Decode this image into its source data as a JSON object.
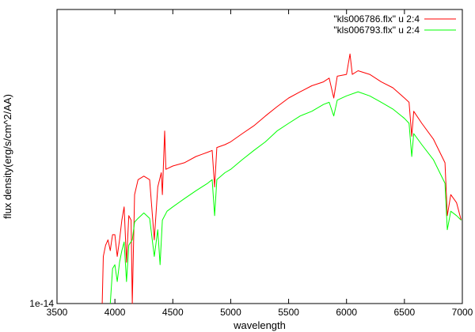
{
  "chart_data": {
    "type": "line",
    "title": "",
    "xlabel": "wavelength",
    "ylabel": "flux density(erg/s/cm^2/AA)",
    "y_scale": "log",
    "xlim": [
      3500,
      7000
    ],
    "ylim": [
      1e-14,
      6.5e-14
    ],
    "x_ticks": [
      3500,
      4000,
      4500,
      5000,
      5500,
      6000,
      6500,
      7000
    ],
    "x_tick_labels": [
      "3500",
      "4000",
      "4500",
      "5000",
      "5500",
      "6000",
      "6500",
      "7000"
    ],
    "y_ticks": [
      1e-14
    ],
    "y_tick_labels": [
      "1e-14"
    ],
    "grid": false,
    "legend_position": "top-right",
    "series": [
      {
        "name": "\"kls006786.flx\" u 2:4",
        "color": "#ff0000",
        "points": [
          [
            3890,
            1e-14
          ],
          [
            3900,
            1.35e-14
          ],
          [
            3920,
            1.45e-14
          ],
          [
            3940,
            1.5e-14
          ],
          [
            3960,
            1.4e-14
          ],
          [
            3970,
            1.48e-14
          ],
          [
            3980,
            1.55e-14
          ],
          [
            4000,
            1.55e-14
          ],
          [
            4020,
            1.35e-14
          ],
          [
            4040,
            1.5e-14
          ],
          [
            4060,
            1.7e-14
          ],
          [
            4080,
            1.85e-14
          ],
          [
            4100,
            1.3e-14
          ],
          [
            4120,
            1.75e-14
          ],
          [
            4140,
            1.7e-14
          ],
          [
            4150,
            1e-14
          ],
          [
            4170,
            2e-14
          ],
          [
            4200,
            2.2e-14
          ],
          [
            4250,
            2.25e-14
          ],
          [
            4300,
            2.2e-14
          ],
          [
            4340,
            1.5e-14
          ],
          [
            4370,
            2.1e-14
          ],
          [
            4400,
            2.3e-14
          ],
          [
            4410,
            2e-14
          ],
          [
            4430,
            3e-14
          ],
          [
            4440,
            2.35e-14
          ],
          [
            4500,
            2.4e-14
          ],
          [
            4600,
            2.45e-14
          ],
          [
            4700,
            2.55e-14
          ],
          [
            4800,
            2.62e-14
          ],
          [
            4840,
            2.65e-14
          ],
          [
            4861,
            2.1e-14
          ],
          [
            4880,
            2.7e-14
          ],
          [
            4950,
            2.75e-14
          ],
          [
            5000,
            2.8e-14
          ],
          [
            5100,
            2.95e-14
          ],
          [
            5200,
            3.1e-14
          ],
          [
            5300,
            3.3e-14
          ],
          [
            5400,
            3.5e-14
          ],
          [
            5500,
            3.7e-14
          ],
          [
            5600,
            3.85e-14
          ],
          [
            5700,
            4e-14
          ],
          [
            5800,
            4.1e-14
          ],
          [
            5850,
            4.2e-14
          ],
          [
            5890,
            3.7e-14
          ],
          [
            5920,
            4.25e-14
          ],
          [
            6000,
            4.3e-14
          ],
          [
            6030,
            4.9e-14
          ],
          [
            6050,
            4.3e-14
          ],
          [
            6100,
            4.4e-14
          ],
          [
            6200,
            4.3e-14
          ],
          [
            6300,
            4.1e-14
          ],
          [
            6400,
            3.95e-14
          ],
          [
            6500,
            3.7e-14
          ],
          [
            6540,
            3.6e-14
          ],
          [
            6563,
            2.9e-14
          ],
          [
            6580,
            3.4e-14
          ],
          [
            6650,
            3.15e-14
          ],
          [
            6750,
            2.85e-14
          ],
          [
            6850,
            2.45e-14
          ],
          [
            6870,
            1.75e-14
          ],
          [
            6900,
            2e-14
          ],
          [
            6950,
            1.9e-14
          ],
          [
            6990,
            1.7e-14
          ]
        ]
      },
      {
        "name": "\"kls006793.flx\" u 2:4",
        "color": "#00ff00",
        "points": [
          [
            3960,
            1e-14
          ],
          [
            3980,
            1.25e-14
          ],
          [
            4000,
            1.28e-14
          ],
          [
            4020,
            1.15e-14
          ],
          [
            4040,
            1.3e-14
          ],
          [
            4060,
            1.4e-14
          ],
          [
            4080,
            1.48e-14
          ],
          [
            4100,
            1.15e-14
          ],
          [
            4120,
            1.45e-14
          ],
          [
            4150,
            1.5e-14
          ],
          [
            4170,
            1.68e-14
          ],
          [
            4200,
            1.72e-14
          ],
          [
            4250,
            1.78e-14
          ],
          [
            4300,
            1.72e-14
          ],
          [
            4340,
            1.35e-14
          ],
          [
            4370,
            1.6e-14
          ],
          [
            4390,
            1.28e-14
          ],
          [
            4410,
            1.7e-14
          ],
          [
            4450,
            1.8e-14
          ],
          [
            4500,
            1.85e-14
          ],
          [
            4600,
            1.95e-14
          ],
          [
            4700,
            2.05e-14
          ],
          [
            4800,
            2.15e-14
          ],
          [
            4840,
            2.2e-14
          ],
          [
            4861,
            1.75e-14
          ],
          [
            4880,
            2.2e-14
          ],
          [
            4950,
            2.3e-14
          ],
          [
            5000,
            2.35e-14
          ],
          [
            5100,
            2.5e-14
          ],
          [
            5200,
            2.65e-14
          ],
          [
            5300,
            2.8e-14
          ],
          [
            5400,
            3e-14
          ],
          [
            5500,
            3.15e-14
          ],
          [
            5600,
            3.3e-14
          ],
          [
            5700,
            3.4e-14
          ],
          [
            5800,
            3.55e-14
          ],
          [
            5850,
            3.6e-14
          ],
          [
            5890,
            3.3e-14
          ],
          [
            5920,
            3.65e-14
          ],
          [
            6000,
            3.75e-14
          ],
          [
            6100,
            3.85e-14
          ],
          [
            6200,
            3.75e-14
          ],
          [
            6300,
            3.6e-14
          ],
          [
            6400,
            3.45e-14
          ],
          [
            6500,
            3.25e-14
          ],
          [
            6540,
            3.15e-14
          ],
          [
            6563,
            2.55e-14
          ],
          [
            6580,
            2.95e-14
          ],
          [
            6650,
            2.75e-14
          ],
          [
            6750,
            2.5e-14
          ],
          [
            6850,
            2.15e-14
          ],
          [
            6870,
            1.6e-14
          ],
          [
            6900,
            1.8e-14
          ],
          [
            6950,
            1.75e-14
          ],
          [
            6990,
            1.7e-14
          ]
        ]
      }
    ]
  }
}
